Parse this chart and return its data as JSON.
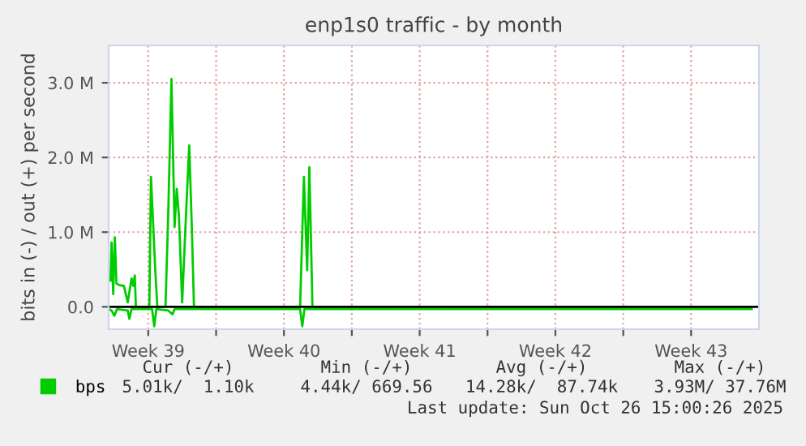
{
  "chart_data": {
    "type": "line",
    "title": "enp1s0 traffic - by month",
    "ylabel": "bits in (-) / out (+) per second",
    "xlim": [
      "2025-09-23T11:00",
      "2025-10-27T00:00"
    ],
    "xticks": [
      {
        "value": "2025-09-25T12:00",
        "label": "Week 39"
      },
      {
        "value": "2025-09-29T00:00",
        "label": null
      },
      {
        "value": "2025-10-02T12:00",
        "label": "Week 40"
      },
      {
        "value": "2025-10-06T00:00",
        "label": null
      },
      {
        "value": "2025-10-09T12:00",
        "label": "Week 41"
      },
      {
        "value": "2025-10-13T00:00",
        "label": null
      },
      {
        "value": "2025-10-16T12:00",
        "label": "Week 42"
      },
      {
        "value": "2025-10-20T00:00",
        "label": null
      },
      {
        "value": "2025-10-23T12:00",
        "label": "Week 43"
      }
    ],
    "ylim": [
      -300000,
      3500000
    ],
    "yticks": [
      {
        "value": 0,
        "label": "0.0"
      },
      {
        "value": 1000000,
        "label": "1.0 M"
      },
      {
        "value": 2000000,
        "label": "2.0 M"
      },
      {
        "value": 3000000,
        "label": "3.0 M"
      }
    ],
    "grid": true,
    "legend": "bottom",
    "series": [
      {
        "name": "bps",
        "color": "#00cc00",
        "x": [
          "2025-09-23T13:18",
          "2025-09-23T14:38",
          "2025-09-23T16:39",
          "2025-09-23T18:40",
          "2025-09-23T20:41",
          "2025-09-24T00:43",
          "2025-09-24T05:56",
          "2025-09-24T10:38",
          "2025-09-24T15:20",
          "2025-09-24T17:21",
          "2025-09-24T19:22",
          "2025-09-24T20:43",
          "2025-09-25T13:21",
          "2025-09-25T15:22",
          "2025-09-25T20:44",
          "2025-09-25T23:15",
          "2025-09-26T09:20",
          "2025-09-26T12:42",
          "2025-09-26T16:44",
          "2025-09-26T20:36",
          "2025-09-26T23:17",
          "2025-09-27T01:58",
          "2025-09-27T06:00",
          "2025-09-27T10:42",
          "2025-09-27T14:44",
          "2025-09-27T17:56",
          "2025-09-27T20:37",
          "2025-10-03T08:00",
          "2025-10-03T12:42",
          "2025-10-03T16:44",
          "2025-10-03T19:25",
          "2025-10-03T23:17",
          "2025-10-26T15:00"
        ],
        "values": [
          350000,
          860000,
          170000,
          930000,
          310000,
          290000,
          280000,
          60000,
          380000,
          280000,
          420000,
          0,
          0,
          1740000,
          490000,
          0,
          0,
          1220000,
          3050000,
          1070000,
          1580000,
          1220000,
          60000,
          1220000,
          2160000,
          1070000,
          0,
          0,
          1740000,
          490000,
          1870000,
          0,
          0
        ]
      },
      {
        "color": "#00cc00",
        "x": [
          "2025-09-23T11:30",
          "2025-09-23T14:38",
          "2025-09-23T18:00",
          "2025-09-23T21:22",
          "2025-09-24T10:38",
          "2025-09-24T12:39",
          "2025-09-24T15:20",
          "2025-09-25T16:42",
          "2025-09-25T19:24",
          "2025-09-25T22:05",
          "2025-09-26T12:42",
          "2025-09-26T18:04",
          "2025-09-26T20:36",
          "2025-10-03T08:00",
          "2025-10-03T10:41",
          "2025-10-03T13:22",
          "2025-10-26T15:00"
        ],
        "values": [
          -30000,
          -50000,
          -120000,
          -30000,
          -50000,
          -160000,
          -30000,
          -30000,
          -260000,
          -30000,
          -50000,
          -100000,
          -30000,
          -30000,
          -260000,
          -30000,
          -30000
        ]
      }
    ],
    "annotations": [
      "Cur (-/+)",
      "Min (-/+)",
      "Avg (-/+)",
      "Max (-/+)",
      "5.01k/  1.10k",
      "4.44k/ 669.56",
      "14.28k/  87.74k",
      "3.93M/ 37.76M",
      "Last update: Sun Oct 26 15:00:26 2025"
    ]
  }
}
